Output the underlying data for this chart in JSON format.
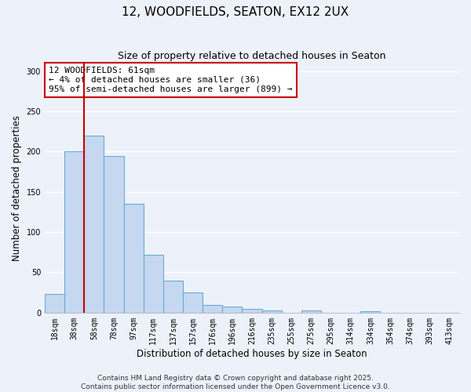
{
  "title": "12, WOODFIELDS, SEATON, EX12 2UX",
  "subtitle": "Size of property relative to detached houses in Seaton",
  "xlabel": "Distribution of detached houses by size in Seaton",
  "ylabel": "Number of detached properties",
  "bar_labels": [
    "18sqm",
    "38sqm",
    "58sqm",
    "78sqm",
    "97sqm",
    "117sqm",
    "137sqm",
    "157sqm",
    "176sqm",
    "196sqm",
    "216sqm",
    "235sqm",
    "255sqm",
    "275sqm",
    "295sqm",
    "314sqm",
    "334sqm",
    "354sqm",
    "374sqm",
    "393sqm",
    "413sqm"
  ],
  "bar_values": [
    23,
    200,
    220,
    195,
    135,
    72,
    40,
    25,
    10,
    8,
    5,
    3,
    0,
    3,
    0,
    0,
    2,
    0,
    0,
    0,
    0
  ],
  "bar_color": "#c5d8f0",
  "bar_edge_color": "#6aaad4",
  "vline_color": "#cc0000",
  "annotation_box_text": "12 WOODFIELDS: 61sqm\n← 4% of detached houses are smaller (36)\n95% of semi-detached houses are larger (899) →",
  "annotation_box_facecolor": "#ffffff",
  "annotation_box_edgecolor": "#cc0000",
  "ylim": [
    0,
    310
  ],
  "yticks": [
    0,
    50,
    100,
    150,
    200,
    250,
    300
  ],
  "footer_line1": "Contains HM Land Registry data © Crown copyright and database right 2025.",
  "footer_line2": "Contains public sector information licensed under the Open Government Licence v3.0.",
  "bg_color": "#edf2fa",
  "grid_color": "#ffffff",
  "title_fontsize": 11,
  "subtitle_fontsize": 9,
  "axis_label_fontsize": 8.5,
  "tick_fontsize": 7,
  "annotation_fontsize": 8,
  "footer_fontsize": 6.5
}
